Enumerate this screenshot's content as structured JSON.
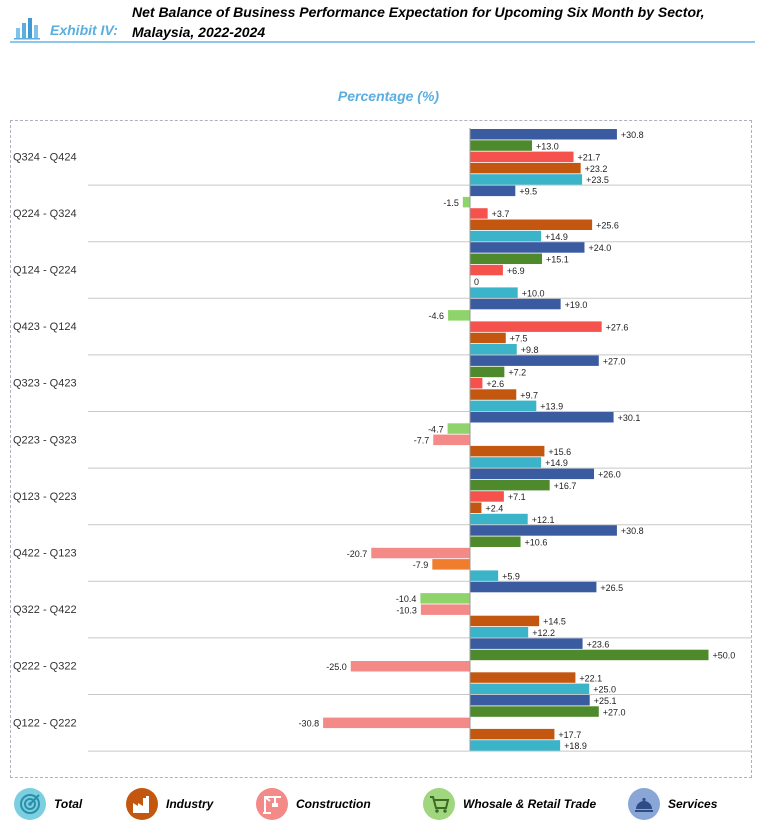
{
  "header": {
    "exhibit": "Exhibit  IV:",
    "title_line1": "Net Balance of Business Performance Expectation for Upcoming Six Month by Sector,",
    "title_line2": "Malaysia, 2022-2024"
  },
  "chart_data": {
    "type": "bar",
    "orientation": "horizontal",
    "title": "Net Balance of Business Performance Expectation for Upcoming Six Month by Sector, Malaysia, 2022-2024",
    "subtitle": "Percentage (%)",
    "categories": [
      "Q324 - Q424",
      "Q224 - Q324",
      "Q124 - Q224",
      "Q423 - Q124",
      "Q323 - Q423",
      "Q223 - Q323",
      "Q123 - Q223",
      "Q422 - Q123",
      "Q322 - Q422",
      "Q222 - Q322",
      "Q122 - Q222"
    ],
    "series": [
      {
        "name": "Services",
        "color": "#3a5ba0",
        "values": [
          30.8,
          9.5,
          24.0,
          19.0,
          27.0,
          30.1,
          26.0,
          30.8,
          26.5,
          23.6,
          25.1
        ]
      },
      {
        "name": "Whosale & Retail Trade",
        "color": "#4e8a2c",
        "negative_color": "#8fd46a",
        "values": [
          13.0,
          -1.5,
          15.1,
          -4.6,
          7.2,
          -4.7,
          16.7,
          10.6,
          -10.4,
          50.0,
          27.0
        ]
      },
      {
        "name": "Construction",
        "color": "#f5524e",
        "negative_color": "#f48a88",
        "values": [
          21.7,
          3.7,
          6.9,
          27.6,
          2.6,
          -7.7,
          7.1,
          -20.7,
          -10.3,
          -25.0,
          -30.8
        ]
      },
      {
        "name": "Industry",
        "color": "#c4570f",
        "negative_color": "#f07d2d",
        "values": [
          23.2,
          25.6,
          0,
          7.5,
          9.7,
          15.6,
          2.4,
          -7.9,
          14.5,
          22.1,
          17.7
        ]
      },
      {
        "name": "Total",
        "color": "#3bb3c8",
        "values": [
          23.5,
          14.9,
          10.0,
          9.8,
          13.9,
          14.9,
          12.1,
          5.9,
          12.2,
          25.0,
          18.9
        ]
      }
    ],
    "value_labels": [
      [
        "+30.8",
        "+13.0",
        "+21.7",
        "+23.2",
        "+23.5"
      ],
      [
        "+9.5",
        "-1.5",
        "+3.7",
        "+25.6",
        "+14.9"
      ],
      [
        "+24.0",
        "+15.1",
        "+6.9",
        "0",
        "+10.0"
      ],
      [
        "+19.0",
        "-4.6",
        "+27.6",
        "+7.5",
        "+9.8"
      ],
      [
        "+27.0",
        "+7.2",
        "+2.6",
        "+9.7",
        "+13.9"
      ],
      [
        "+30.1",
        "-4.7",
        "-7.7",
        "+15.6",
        "+14.9"
      ],
      [
        "+26.0",
        "+16.7",
        "+7.1",
        "+2.4",
        "+12.1"
      ],
      [
        "+30.8",
        "+10.6",
        "-20.7",
        "-7.9",
        "+5.9"
      ],
      [
        "+26.5",
        "-10.4",
        "-10.3",
        "+14.5",
        "+12.2"
      ],
      [
        "+23.6",
        "+50.0",
        "-25.0",
        "+22.1",
        "+25.0"
      ],
      [
        "+25.1",
        "+27.0",
        "-30.8",
        "+17.7",
        "+18.9"
      ]
    ],
    "xlim": [
      -60,
      100
    ],
    "grid": false
  },
  "legend": [
    {
      "label": "Total",
      "icon": "target-icon",
      "bg": "#7ccfe0",
      "fg": "#2a8fa8"
    },
    {
      "label": "Industry",
      "icon": "factory-icon",
      "bg": "#c4570f",
      "fg": "#ffffff"
    },
    {
      "label": "Construction",
      "icon": "crane-icon",
      "bg": "#f48a88",
      "fg": "#ffffff"
    },
    {
      "label": "Whosale & Retail Trade",
      "icon": "shopping-cart-icon",
      "bg": "#9fd67e",
      "fg": "#3e6a23"
    },
    {
      "label": "Services",
      "icon": "service-bell-icon",
      "bg": "#8aa6d6",
      "fg": "#2f4c87"
    }
  ]
}
